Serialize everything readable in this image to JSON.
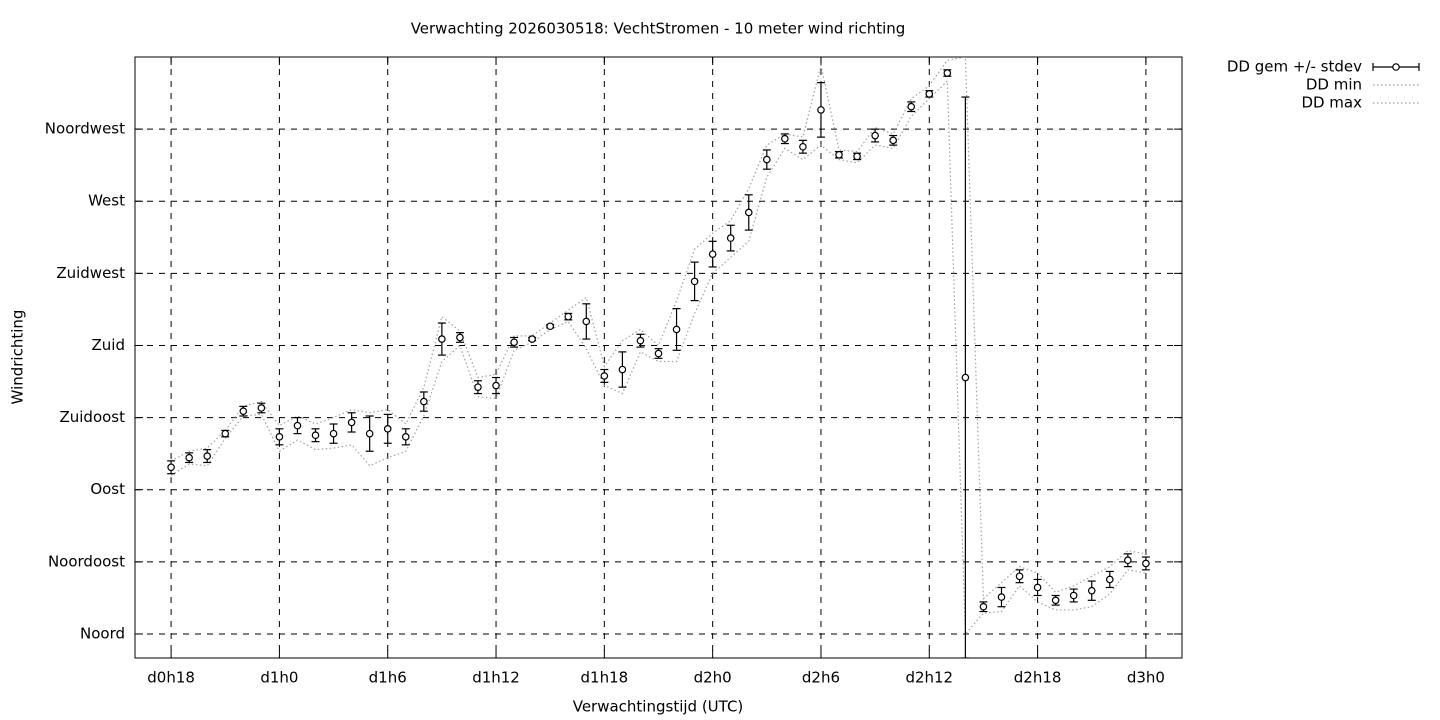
{
  "chart_data": {
    "type": "line",
    "title": "Verwachting 2026030518: VechtStromen - 10 meter wind richting",
    "x_label": "Verwachtingstijd (UTC)",
    "y_label": "Windrichting",
    "x": [
      18,
      19,
      20,
      21,
      22,
      23,
      24,
      25,
      26,
      27,
      28,
      29,
      30,
      31,
      32,
      33,
      34,
      35,
      36,
      37,
      38,
      39,
      40,
      41,
      42,
      43,
      44,
      45,
      46,
      47,
      48,
      49,
      50,
      51,
      52,
      53,
      54,
      55,
      56,
      57,
      58,
      59,
      60,
      61,
      62,
      63,
      64,
      65,
      66,
      67,
      68,
      69,
      70,
      71,
      72
    ],
    "series": [
      {
        "name": "DD gem +/- stdev",
        "style": "errorbar",
        "color": "#000000",
        "values": [
          104,
          110,
          111,
          125,
          139,
          141,
          123,
          130,
          124,
          125,
          132,
          125,
          128,
          123,
          145,
          184,
          185,
          154,
          155,
          182,
          184,
          192,
          198,
          195,
          161,
          165,
          183,
          175,
          190,
          220,
          237,
          247,
          263,
          296,
          309,
          304,
          327,
          299,
          298,
          311,
          308,
          329,
          337,
          350,
          160,
          17,
          23,
          36,
          29,
          21,
          24,
          27,
          34,
          46,
          44
        ],
        "errors": [
          4,
          3,
          4,
          2,
          3,
          3,
          5,
          5,
          4,
          6,
          6,
          11,
          9,
          5,
          6,
          10,
          3,
          4,
          5,
          3,
          1,
          1,
          2,
          11,
          4,
          11,
          4,
          3,
          13,
          12,
          8,
          8,
          11,
          6,
          3,
          4,
          17,
          2,
          2,
          4,
          3,
          3,
          2,
          2,
          175,
          3,
          6,
          4,
          5,
          3,
          4,
          6,
          5,
          4,
          4
        ]
      },
      {
        "name": "DD min",
        "style": "dotted",
        "color": "#a0a0a0",
        "values": [
          99,
          106,
          105,
          122,
          136,
          137,
          114,
          121,
          115,
          116,
          118,
          105,
          110,
          114,
          136,
          170,
          180,
          148,
          147,
          177,
          182,
          190,
          195,
          178,
          155,
          150,
          176,
          170,
          170,
          200,
          225,
          235,
          245,
          285,
          303,
          296,
          305,
          296,
          294,
          305,
          303,
          323,
          334,
          345,
          0,
          13,
          14,
          30,
          20,
          15,
          15,
          17,
          25,
          40,
          38
        ]
      },
      {
        "name": "DD max",
        "style": "dotted",
        "color": "#a0a0a0",
        "values": [
          108,
          114,
          116,
          127,
          142,
          145,
          130,
          136,
          131,
          135,
          140,
          138,
          140,
          131,
          154,
          198,
          189,
          160,
          162,
          186,
          186,
          194,
          202,
          210,
          167,
          183,
          190,
          180,
          208,
          240,
          250,
          258,
          278,
          305,
          312,
          310,
          355,
          302,
          301,
          316,
          312,
          334,
          342,
          358,
          360,
          22,
          32,
          42,
          38,
          26,
          30,
          36,
          42,
          52,
          50
        ]
      }
    ],
    "xlim": [
      16,
      74
    ],
    "ylim": [
      -15,
      360
    ],
    "xticks": [
      {
        "value": 18,
        "label": "d0h18"
      },
      {
        "value": 24,
        "label": "d1h0"
      },
      {
        "value": 30,
        "label": "d1h6"
      },
      {
        "value": 36,
        "label": "d1h12"
      },
      {
        "value": 42,
        "label": "d1h18"
      },
      {
        "value": 48,
        "label": "d2h0"
      },
      {
        "value": 54,
        "label": "d2h6"
      },
      {
        "value": 60,
        "label": "d2h12"
      },
      {
        "value": 66,
        "label": "d2h18"
      },
      {
        "value": 72,
        "label": "d3h0"
      }
    ],
    "yticks": [
      {
        "value": 0,
        "label": "Noord"
      },
      {
        "value": 45,
        "label": "Noordoost"
      },
      {
        "value": 90,
        "label": "Oost"
      },
      {
        "value": 135,
        "label": "Zuidoost"
      },
      {
        "value": 180,
        "label": "Zuid"
      },
      {
        "value": 225,
        "label": "Zuidwest"
      },
      {
        "value": 270,
        "label": "West"
      },
      {
        "value": 315,
        "label": "Noordwest"
      }
    ],
    "grid": true,
    "legend": "outside-top-right"
  }
}
